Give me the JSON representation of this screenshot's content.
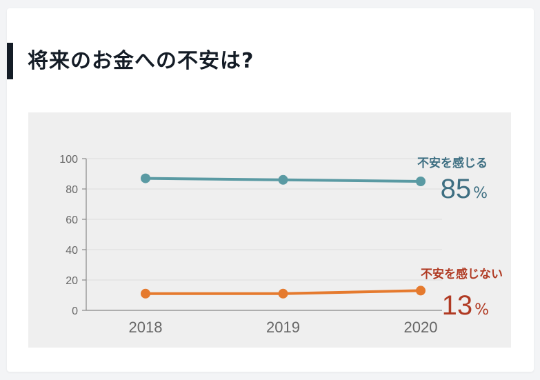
{
  "page": {
    "title": "将来のお金への不安は?"
  },
  "colors": {
    "anxious": "#5a9aa3",
    "not_anxious": "#e57a2e",
    "anxious_label": "#3e6f82",
    "not_anxious_label": "#b03a23",
    "axis": "#888888",
    "grid": "#dedede",
    "tick_text": "#666666"
  },
  "chart_data": {
    "type": "line",
    "x": [
      "2018",
      "2019",
      "2020"
    ],
    "ylim": [
      0,
      100
    ],
    "yticks": [
      0,
      20,
      40,
      60,
      80,
      100
    ],
    "grid": true,
    "series": [
      {
        "name": "不安を感じる",
        "values": [
          87,
          86,
          85
        ],
        "end_label_value": "85",
        "end_label_unit": "%"
      },
      {
        "name": "不安を感じない",
        "values": [
          11,
          11,
          13
        ],
        "end_label_value": "13",
        "end_label_unit": "%"
      }
    ]
  }
}
